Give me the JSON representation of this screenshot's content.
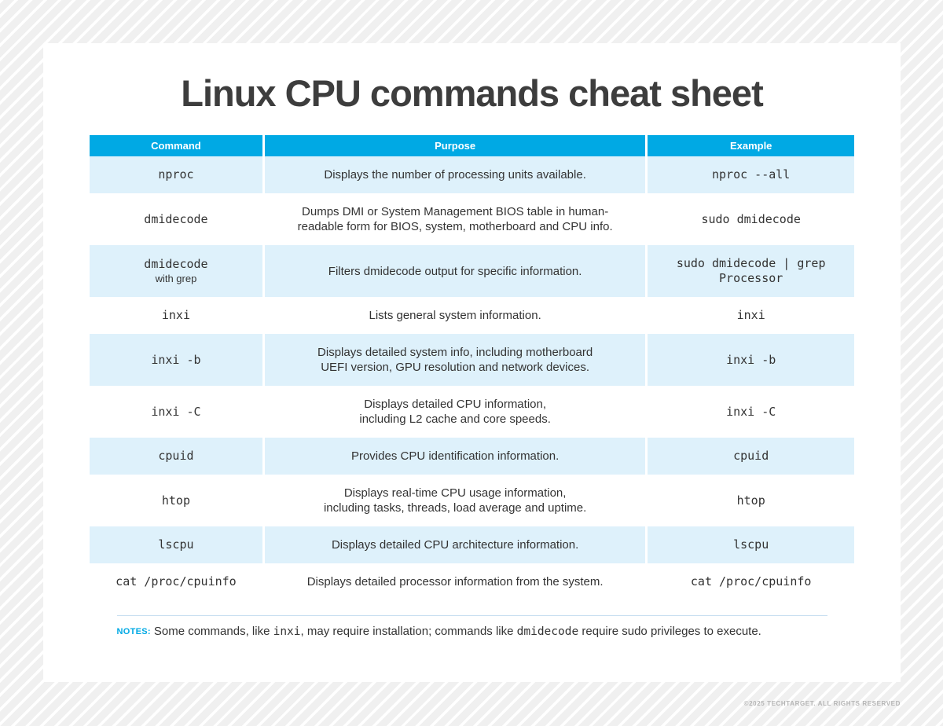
{
  "title": "Linux CPU commands cheat sheet",
  "table": {
    "headers": [
      "Command",
      "Purpose",
      "Example"
    ],
    "rows": [
      {
        "command": "nproc",
        "command_suffix": "",
        "purpose": [
          "Displays the number of processing units available."
        ],
        "example": [
          "nproc --all"
        ]
      },
      {
        "command": "dmidecode",
        "command_suffix": "",
        "purpose": [
          "Dumps DMI or System Management BIOS table in human-",
          "readable form for BIOS, system, motherboard and CPU info."
        ],
        "example": [
          "sudo dmidecode"
        ]
      },
      {
        "command": "dmidecode",
        "command_suffix": "with grep",
        "purpose": [
          "Filters dmidecode output for specific information."
        ],
        "example": [
          "sudo dmidecode | grep",
          "Processor"
        ]
      },
      {
        "command": "inxi",
        "command_suffix": "",
        "purpose": [
          "Lists general system information."
        ],
        "example": [
          "inxi"
        ]
      },
      {
        "command": "inxi -b",
        "command_suffix": "",
        "purpose": [
          "Displays detailed system info, including motherboard",
          "UEFI version, GPU resolution and network devices."
        ],
        "example": [
          "inxi -b"
        ]
      },
      {
        "command": "inxi -C",
        "command_suffix": "",
        "purpose": [
          "Displays detailed CPU information,",
          "including L2 cache and core speeds."
        ],
        "example": [
          "inxi -C"
        ]
      },
      {
        "command": "cpuid",
        "command_suffix": "",
        "purpose": [
          "Provides CPU identification information."
        ],
        "example": [
          "cpuid"
        ]
      },
      {
        "command": "htop",
        "command_suffix": "",
        "purpose": [
          "Displays real-time CPU usage information,",
          "including tasks, threads, load average and uptime."
        ],
        "example": [
          "htop"
        ]
      },
      {
        "command": "lscpu",
        "command_suffix": "",
        "purpose": [
          "Displays detailed CPU architecture information."
        ],
        "example": [
          "lscpu"
        ]
      },
      {
        "command": "cat /proc/cpuinfo",
        "command_suffix": "",
        "purpose": [
          "Displays detailed processor information from the system."
        ],
        "example": [
          "cat /proc/cpuinfo"
        ]
      }
    ]
  },
  "notes": {
    "label": "NOTES:",
    "segments": [
      {
        "text": "Some commands, like ",
        "mono": false
      },
      {
        "text": "inxi",
        "mono": true
      },
      {
        "text": ", may require installation; commands like ",
        "mono": false
      },
      {
        "text": "dmidecode",
        "mono": true
      },
      {
        "text": " require sudo privileges to execute.",
        "mono": false
      }
    ]
  },
  "footer": "©2025 TECHTARGET. ALL RIGHTS RESERVED",
  "colors": {
    "accent_cyan": "#00a9e4",
    "row_alt_blue": "#def1fb",
    "title_gray": "#3d3d3d",
    "body_text": "#333333",
    "divider_blue": "#c8dff0",
    "footer_gray": "#b5b5b5",
    "background_stripe_gray": "#f0f0f0"
  }
}
